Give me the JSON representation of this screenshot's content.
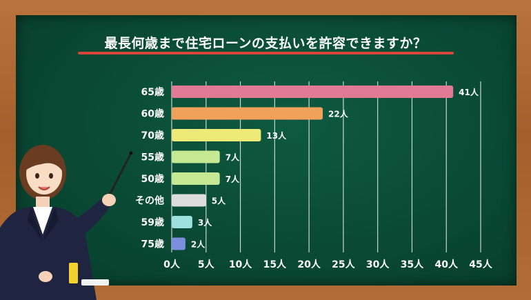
{
  "title": "最長何歳まで住宅ローンの支払いを許容できますか？",
  "chart_data": {
    "type": "bar",
    "orientation": "horizontal",
    "title": "最長何歳まで住宅ローンの支払いを許容できますか？",
    "categories": [
      "65歳",
      "60歳",
      "70歳",
      "55歳",
      "50歳",
      "その他",
      "59歳",
      "75歳"
    ],
    "values": [
      41,
      22,
      13,
      7,
      7,
      5,
      3,
      2
    ],
    "value_labels": [
      "41人",
      "22人",
      "13人",
      "7人",
      "7人",
      "5人",
      "3人",
      "2人"
    ],
    "colors": [
      "#e07a95",
      "#f0a25a",
      "#eeea7a",
      "#c5e992",
      "#c5e992",
      "#dcdcdc",
      "#9ee0dd",
      "#7a8fdf"
    ],
    "xlim": [
      0,
      45
    ],
    "ticks": [
      0,
      5,
      10,
      15,
      20,
      25,
      30,
      35,
      40,
      45
    ],
    "tick_labels": [
      "0人",
      "5人",
      "10人",
      "15人",
      "20人",
      "25人",
      "30人",
      "35人",
      "40人",
      "45人"
    ],
    "grid": true
  }
}
